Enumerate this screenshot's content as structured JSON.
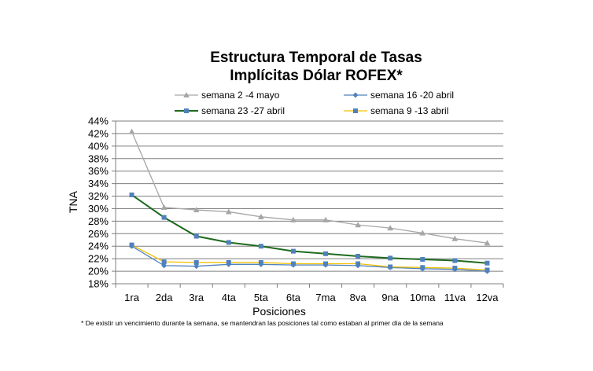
{
  "chart_data": {
    "type": "line",
    "title_line1": "Estructura Temporal de Tasas",
    "title_line2": "Implícitas Dólar ROFEX*",
    "xlabel": "Posiciones",
    "ylabel": "TNA",
    "categories": [
      "1ra",
      "2da",
      "3ra",
      "4ta",
      "5ta",
      "6ta",
      "7ma",
      "8va",
      "9na",
      "10ma",
      "11va",
      "12va"
    ],
    "y_ticks": [
      "18%",
      "20%",
      "22%",
      "24%",
      "26%",
      "28%",
      "30%",
      "32%",
      "34%",
      "36%",
      "38%",
      "40%",
      "42%",
      "44%"
    ],
    "ylim": [
      18,
      44
    ],
    "grid": true,
    "legend_placement": "top",
    "series": [
      {
        "name": "semana 2 -4 mayo",
        "color": "#a6a6a6",
        "marker": "triangle",
        "values": [
          42.3,
          30.2,
          29.8,
          29.5,
          28.7,
          28.2,
          28.2,
          27.4,
          26.9,
          26.1,
          25.2,
          24.5
        ]
      },
      {
        "name": "semana 16 -20 abril",
        "color": "#4f81bd",
        "marker": "diamond",
        "values": [
          24.0,
          20.9,
          20.8,
          21.1,
          21.1,
          21.0,
          21.0,
          20.9,
          20.6,
          20.4,
          20.3,
          20.0
        ]
      },
      {
        "name": "semana 23 -27 abril",
        "color": "#1e6b1e",
        "marker": "square",
        "values": [
          32.2,
          28.6,
          25.6,
          24.6,
          24.0,
          23.2,
          22.8,
          22.4,
          22.1,
          21.9,
          21.7,
          21.3
        ]
      },
      {
        "name": "semana 9 -13 abril",
        "color": "#f0c000",
        "marker": "square",
        "values": [
          24.2,
          21.5,
          21.4,
          21.4,
          21.4,
          21.2,
          21.2,
          21.2,
          20.7,
          20.6,
          20.5,
          20.2
        ]
      }
    ],
    "footnote": "* De existir un vencimiento durante la semana, se mantendran las posiciones  tal como estaban al primer día de la semana"
  }
}
